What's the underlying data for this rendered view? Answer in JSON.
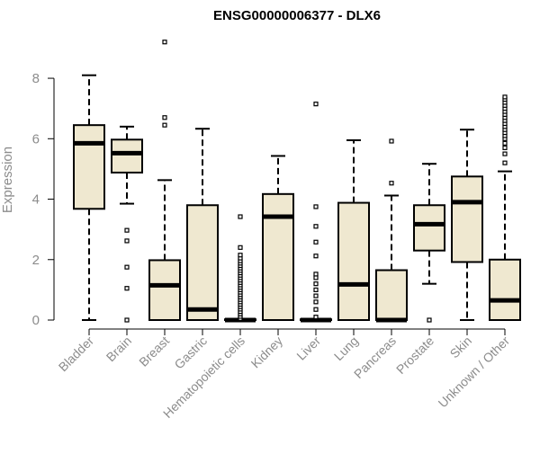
{
  "chart_data": {
    "type": "boxplot",
    "title": "ENSG00000006377 - DLX6",
    "ylabel": "Expression",
    "xlabel": "",
    "ylim": [
      0,
      9.4
    ],
    "yticks": [
      0,
      2,
      4,
      6,
      8
    ],
    "box_fill": "#efe8d0",
    "box_stroke": "#000000",
    "categories": [
      "Bladder",
      "Brain",
      "Breast",
      "Gastric",
      "Hematopoietic cells",
      "Kidney",
      "Liver",
      "Lung",
      "Pancreas",
      "Prostate",
      "Skin",
      "Unknown / Other"
    ],
    "boxes": [
      {
        "category": "Bladder",
        "whisker_low": 0.0,
        "q1": 3.68,
        "median": 5.85,
        "q3": 6.45,
        "whisker_high": 8.1,
        "outliers": []
      },
      {
        "category": "Brain",
        "whisker_low": 3.85,
        "q1": 4.88,
        "median": 5.52,
        "q3": 5.97,
        "whisker_high": 6.4,
        "outliers": [
          0.0,
          1.05,
          1.75,
          2.62,
          2.97
        ]
      },
      {
        "category": "Breast",
        "whisker_low": 0.0,
        "q1": 0.0,
        "median": 1.15,
        "q3": 1.98,
        "whisker_high": 4.63,
        "outliers": [
          6.45,
          6.7,
          9.2
        ]
      },
      {
        "category": "Gastric",
        "whisker_low": 0.0,
        "q1": 0.0,
        "median": 0.35,
        "q3": 3.8,
        "whisker_high": 6.33,
        "outliers": []
      },
      {
        "category": "Hematopoietic cells",
        "whisker_low": 0.0,
        "q1": 0.0,
        "median": 0.0,
        "q3": 0.0,
        "whisker_high": 0.0,
        "outliers": [
          0.05,
          0.12,
          0.2,
          0.28,
          0.36,
          0.44,
          0.52,
          0.6,
          0.68,
          0.76,
          0.84,
          0.92,
          1.0,
          1.08,
          1.16,
          1.24,
          1.32,
          1.4,
          1.48,
          1.56,
          1.64,
          1.72,
          1.8,
          1.88,
          1.96,
          2.05,
          2.15,
          2.4,
          3.42
        ]
      },
      {
        "category": "Kidney",
        "whisker_low": 0.0,
        "q1": 0.0,
        "median": 3.42,
        "q3": 4.17,
        "whisker_high": 5.43,
        "outliers": []
      },
      {
        "category": "Liver",
        "whisker_low": 0.0,
        "q1": 0.0,
        "median": 0.0,
        "q3": 0.0,
        "whisker_high": 0.0,
        "outliers": [
          0.1,
          0.35,
          0.6,
          0.8,
          1.0,
          1.2,
          1.4,
          1.52,
          2.12,
          2.58,
          3.1,
          3.75,
          7.15
        ]
      },
      {
        "category": "Lung",
        "whisker_low": 0.0,
        "q1": 0.0,
        "median": 1.18,
        "q3": 3.88,
        "whisker_high": 5.95,
        "outliers": []
      },
      {
        "category": "Pancreas",
        "whisker_low": 0.0,
        "q1": 0.0,
        "median": 0.0,
        "q3": 1.65,
        "whisker_high": 4.12,
        "outliers": [
          4.53,
          5.92
        ]
      },
      {
        "category": "Prostate",
        "whisker_low": 1.2,
        "q1": 2.3,
        "median": 3.17,
        "q3": 3.8,
        "whisker_high": 5.17,
        "outliers": [
          0.0
        ]
      },
      {
        "category": "Skin",
        "whisker_low": 0.0,
        "q1": 1.92,
        "median": 3.9,
        "q3": 4.75,
        "whisker_high": 6.3,
        "outliers": []
      },
      {
        "category": "Unknown / Other",
        "whisker_low": 0.0,
        "q1": 0.0,
        "median": 0.65,
        "q3": 2.0,
        "whisker_high": 4.92,
        "outliers": [
          5.2,
          5.5,
          5.7,
          5.85,
          6.0,
          6.1,
          6.2,
          6.3,
          6.4,
          6.5,
          6.6,
          6.7,
          6.8,
          6.9,
          7.0,
          7.1,
          7.2,
          7.3,
          7.38
        ]
      }
    ]
  }
}
